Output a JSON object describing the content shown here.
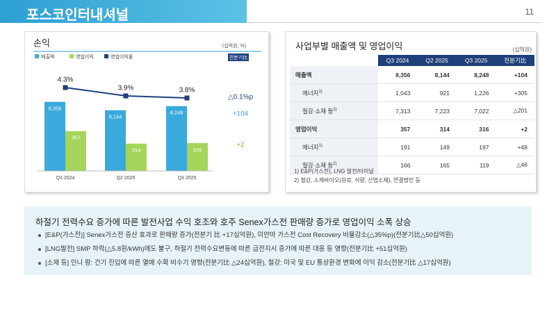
{
  "header": {
    "title": "포스코인터내셔널",
    "page": "11"
  },
  "chart_data": {
    "type": "bar",
    "title": "손익",
    "unit": "(십억원, %)",
    "badge": "전분기比",
    "categories": [
      "Q3 2024",
      "Q2 2025",
      "Q3 2025"
    ],
    "ylim": [
      6600,
      8720
    ],
    "y2lim": [
      220,
      507
    ],
    "y3lim": [
      0.3,
      4.3
    ],
    "series": [
      {
        "name": "매출액",
        "color": "#3aa9dc",
        "values": [
          8356,
          8144,
          8248
        ],
        "value_labels": [
          "8,356",
          "8,144",
          "8,248"
        ],
        "axis": "y"
      },
      {
        "name": "영업이익",
        "color": "#a5d55a",
        "values": [
          357,
          314,
          316
        ],
        "axis": "y2"
      },
      {
        "name": "영업이익률",
        "color": "#1f3f7a",
        "type": "line",
        "values": [
          4.3,
          3.9,
          3.8
        ],
        "value_labels": [
          "4.3%",
          "3.9%",
          "3.8%"
        ],
        "axis": "y3"
      }
    ],
    "annotations": [
      {
        "text": "△0.1%p",
        "color": "#1f3f7a"
      },
      {
        "text": "+104",
        "color": "#3aa9dc"
      },
      {
        "text": "+2",
        "color": "#7fb83a"
      }
    ]
  },
  "table": {
    "title": "사업부별 매출액 및 영업이익",
    "unit": "(십억원)",
    "headers": [
      "Q3 2024",
      "Q2 2025",
      "Q3 2025",
      "전분기比"
    ],
    "rows": [
      {
        "label": "매출액",
        "bold": true,
        "cells": [
          "8,356",
          "8,144",
          "8,248",
          "+104"
        ]
      },
      {
        "label": "에너지",
        "note": "1)",
        "cells": [
          "1,043",
          "921",
          "1,226",
          "+305"
        ]
      },
      {
        "label": "철강·소재 등",
        "note": "2)",
        "cells": [
          "7,313",
          "7,223",
          "7,022",
          "△201"
        ]
      },
      {
        "label": "영업이익",
        "bold": true,
        "cells": [
          "357",
          "314",
          "316",
          "+2"
        ]
      },
      {
        "label": "에너지",
        "note": "1)",
        "cells": [
          "191",
          "149",
          "197",
          "+48"
        ]
      },
      {
        "label": "철강·소재 등",
        "note": "2)",
        "cells": [
          "166",
          "165",
          "119",
          "△46"
        ]
      }
    ],
    "footnotes": [
      "1) E&P(가스전), LNG 발전/터미널",
      "2) 철강, 소재바이오(원료, 식량, 산업소재), 연결법인 등"
    ]
  },
  "summary": {
    "headline": "하절기 전력수요 증가에 따른 발전사업 수익 호조와 호주 Senex가스전 판매량 증가로 영업이익 소폭 상승",
    "bullets": [
      "[E&P(가스전)] Senex가스전 증산 효과로 판매량 증가(전분기 比 +17십억원), 미얀마 가스전 Cost Recovery 비율감소(△35%p)(전분기比△50십억원)",
      "[LNG발전] SMP 하락(△5.8원/kWh)에도 불구, 하절기 전력수요변동에 따른 급전지시 증가에 따른 대응 등 영향(전분기比 +51십억원)",
      "[소재 등] 인니 팜: 건기 진입에 따른 열매 수확 비수기 영향(전분기比 △24십억원), 철강: 미국 및 EU 통상환경 변화에 이익 감소(전분기比 △17십억원)"
    ]
  }
}
